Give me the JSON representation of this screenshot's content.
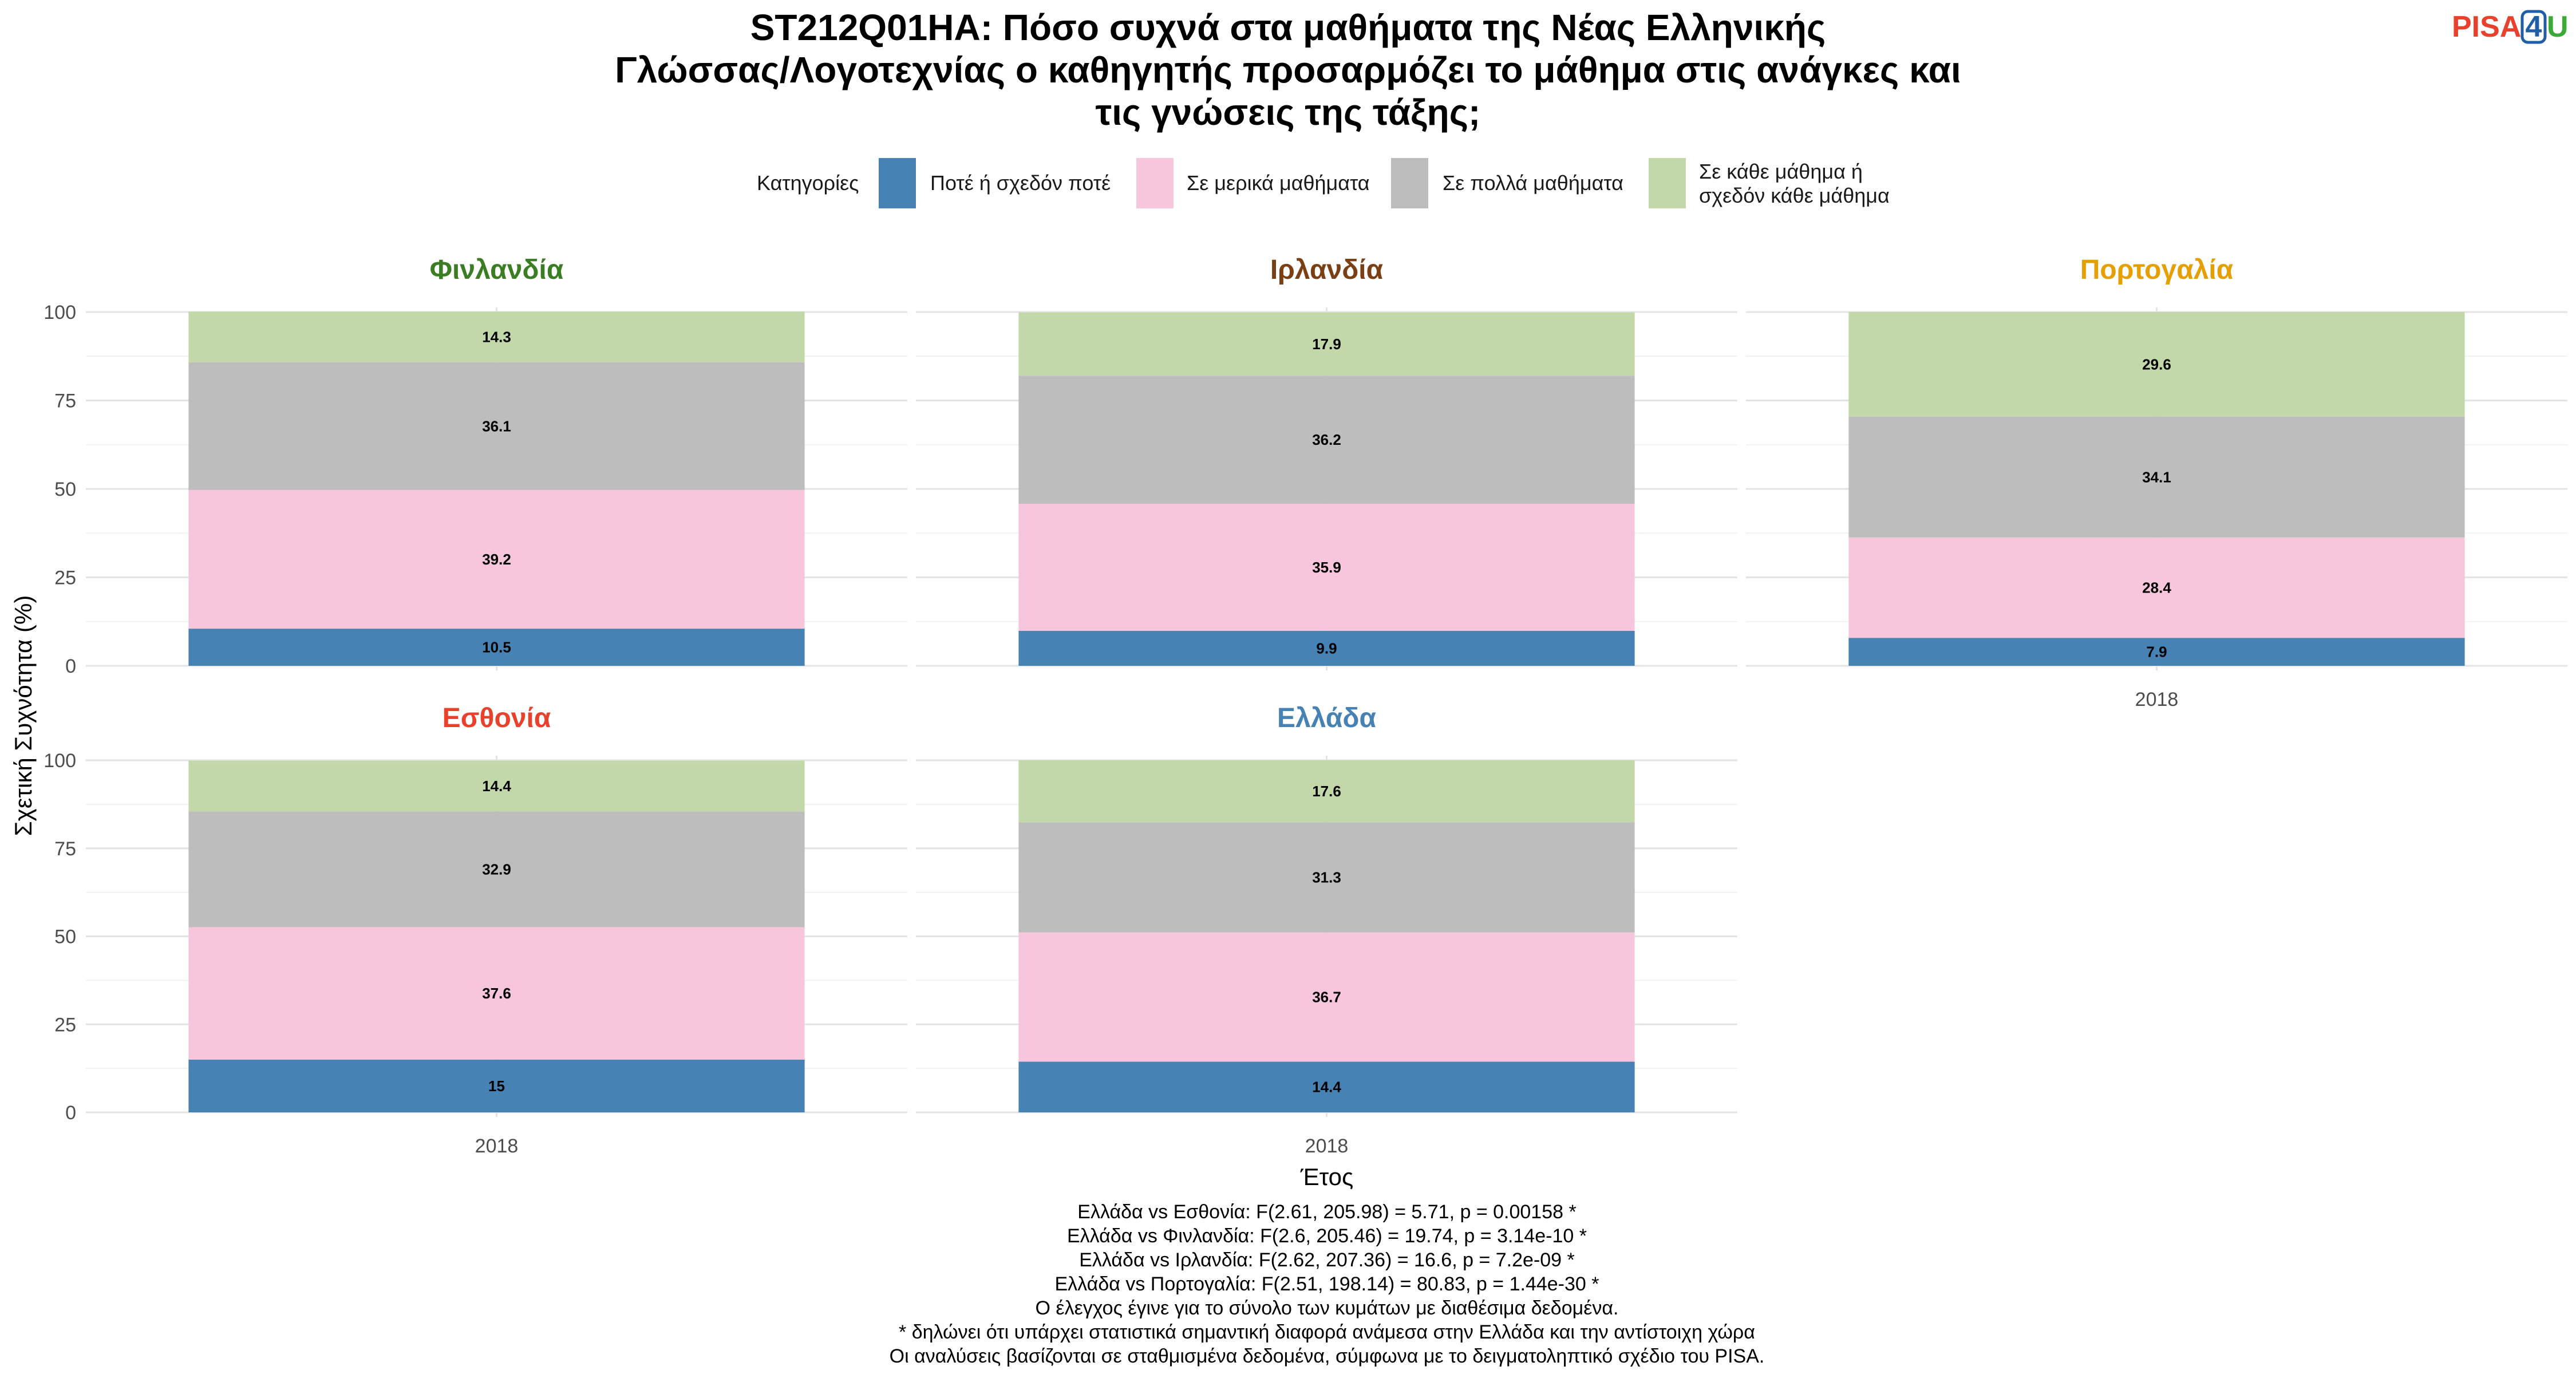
{
  "logo": {
    "pisa": "PISA",
    "four": "4",
    "u": "U",
    "pisa_color": "#e8412c",
    "four_color": "#1f5fa8",
    "u_color": "#3aa935"
  },
  "chart_data": {
    "type": "bar",
    "stacked": true,
    "title_lines": [
      "ST212Q01HA: Πόσο συχνά στα μαθήματα της Νέας Ελληνικής",
      "Γλώσσας/Λογοτεχνίας ο καθηγητής προσαρμόζει το μάθημα στις ανάγκες και",
      "τις γνώσεις της τάξης;"
    ],
    "legend_title": "Κατηγορίες",
    "legend_position": "top",
    "categories": [
      {
        "label_lines": [
          "Ποτέ ή σχεδόν ποτέ"
        ],
        "color": "#4682b4"
      },
      {
        "label_lines": [
          "Σε μερικά μαθήματα"
        ],
        "color": "#f7c6dc"
      },
      {
        "label_lines": [
          "Σε πολλά μαθήματα"
        ],
        "color": "#bdbdbd"
      },
      {
        "label_lines": [
          "Σε κάθε μάθημα ή",
          "σχεδόν κάθε μάθημα"
        ],
        "color": "#c2d8a8"
      }
    ],
    "xlabel": "Έτος",
    "ylabel": "Σχετική Συχνότητα (%)",
    "ylim": [
      0,
      100
    ],
    "yticks": [
      0,
      25,
      50,
      75,
      100
    ],
    "grid": true,
    "facets": [
      {
        "name": "Φινλανδία",
        "color": "#3a7d22",
        "year": "2018",
        "show_x_tick": false,
        "values": [
          10.5,
          39.2,
          36.1,
          14.3
        ]
      },
      {
        "name": "Ιρλανδία",
        "color": "#7b3f14",
        "year": "2018",
        "show_x_tick": false,
        "values": [
          9.9,
          35.9,
          36.2,
          17.9
        ]
      },
      {
        "name": "Πορτογαλία",
        "color": "#e69f00",
        "year": "2018",
        "show_x_tick": true,
        "values": [
          7.9,
          28.4,
          34.1,
          29.6
        ]
      },
      {
        "name": "Εσθονία",
        "color": "#e8412c",
        "year": "2018",
        "show_x_tick": true,
        "values": [
          15,
          37.6,
          32.9,
          14.4
        ]
      },
      {
        "name": "Ελλάδα",
        "color": "#4682b4",
        "year": "2018",
        "show_x_tick": true,
        "values": [
          14.4,
          36.7,
          31.3,
          17.6
        ]
      }
    ],
    "caption_lines": [
      "Ελλάδα vs Εσθονία: F(2.61, 205.98) = 5.71, p = 0.00158 *",
      "Ελλάδα vs Φινλανδία: F(2.6, 205.46) = 19.74, p = 3.14e-10 *",
      "Ελλάδα vs Ιρλανδία: F(2.62, 207.36) = 16.6, p = 7.2e-09 *",
      "Ελλάδα vs Πορτογαλία: F(2.51, 198.14) = 80.83, p = 1.44e-30 *",
      "Ο έλεγχος έγινε για το σύνολο των κυμάτων με διαθέσιμα δεδομένα.",
      "* δηλώνει ότι υπάρχει στατιστικά σημαντική διαφορά ανάμεσα στην Ελλάδα και την αντίστοιχη χώρα",
      "Οι αναλύσεις βασίζονται σε σταθμισμένα δεδομένα, σύμφωνα με το δειγματοληπτικό σχέδιο του PISA."
    ]
  }
}
